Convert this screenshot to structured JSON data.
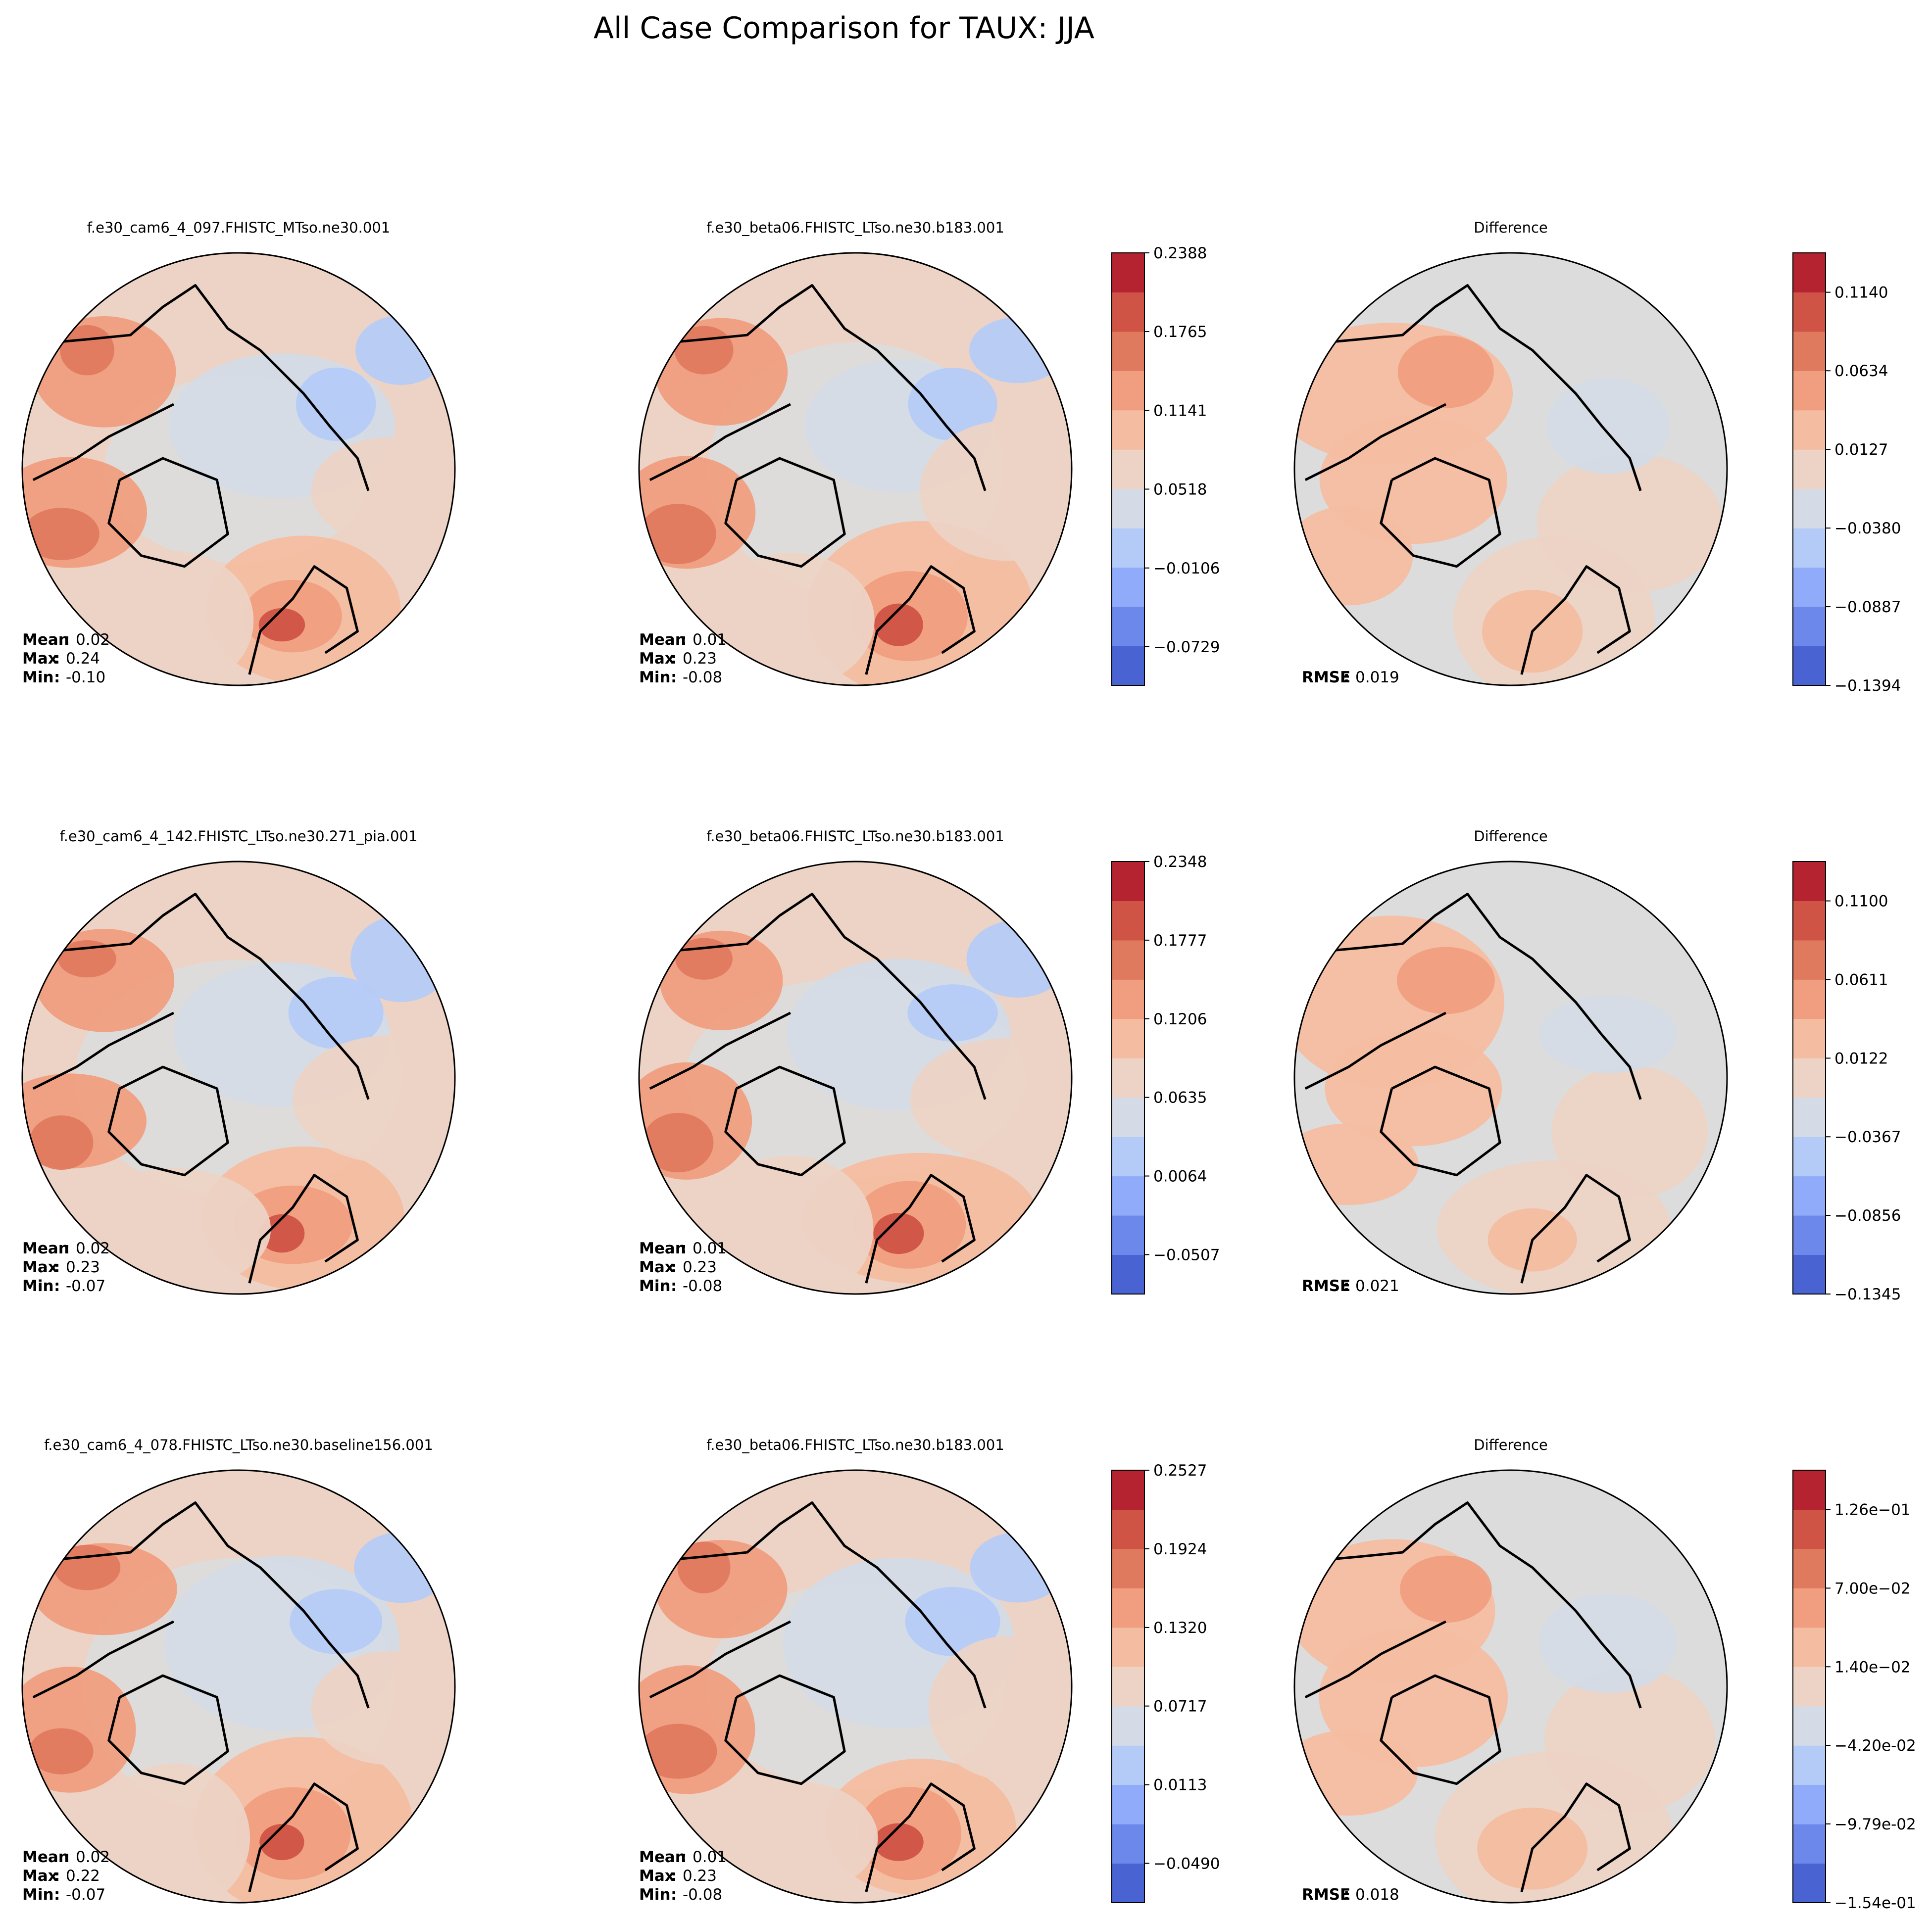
{
  "title": "All Case Comparison for TAUX: JJA",
  "colors": {
    "scale": [
      "#4a63d2",
      "#6b88ea",
      "#8fabf9",
      "#b5cbf7",
      "#d4dbe6",
      "#dcdcdc",
      "#ecd3c5",
      "#f4bda1",
      "#f09e7f",
      "#e07a5f",
      "#cf5446",
      "#b4232f"
    ],
    "land": "#000000"
  },
  "chart_data": [
    {
      "type": "polar-contour-map",
      "row": 0,
      "col": 0,
      "kind": "case",
      "title": "f.e30_cam6_4_097.FHISTC_MTso.ne30.001",
      "stats": [
        {
          "label": "Mean",
          "value": "0.02"
        },
        {
          "label": "Max",
          "value": "0.24"
        },
        {
          "label": "Min",
          "value": "-0.10"
        }
      ]
    },
    {
      "type": "polar-contour-map",
      "row": 0,
      "col": 1,
      "kind": "baseline",
      "title": "f.e30_beta06.FHISTC_LTso.ne30.b183.001",
      "stats": [
        {
          "label": "Mean",
          "value": "0.01"
        },
        {
          "label": "Max",
          "value": "0.23"
        },
        {
          "label": "Min",
          "value": "-0.08"
        }
      ],
      "colorbar": {
        "range": [
          -0.1035,
          0.2388
        ],
        "ticks": [
          "0.2388",
          "0.1765",
          "0.1141",
          "0.0518",
          "-0.0106",
          "-0.0729"
        ],
        "tick_values": [
          0.2388,
          0.1765,
          0.1141,
          0.0518,
          -0.0106,
          -0.0729
        ],
        "n_levels": 11
      }
    },
    {
      "type": "polar-contour-map",
      "row": 0,
      "col": 2,
      "kind": "difference",
      "title": "Difference",
      "stats": [
        {
          "label": "RMSE",
          "value": "0.019"
        }
      ],
      "colorbar": {
        "range": [
          -0.1394,
          0.1394
        ],
        "ticks": [
          "0.1140",
          "0.0634",
          "0.0127",
          "-0.0380",
          "-0.0887",
          "-0.1394"
        ],
        "tick_values": [
          0.114,
          0.0634,
          0.0127,
          -0.038,
          -0.0887,
          -0.1394
        ],
        "n_levels": 11
      }
    },
    {
      "type": "polar-contour-map",
      "row": 1,
      "col": 0,
      "kind": "case",
      "title": "f.e30_cam6_4_142.FHISTC_LTso.ne30.271_pia.001",
      "stats": [
        {
          "label": "Mean",
          "value": "0.02"
        },
        {
          "label": "Max",
          "value": "0.23"
        },
        {
          "label": "Min",
          "value": "-0.07"
        }
      ]
    },
    {
      "type": "polar-contour-map",
      "row": 1,
      "col": 1,
      "kind": "baseline",
      "title": "f.e30_beta06.FHISTC_LTso.ne30.b183.001",
      "stats": [
        {
          "label": "Mean",
          "value": "0.01"
        },
        {
          "label": "Max",
          "value": "0.23"
        },
        {
          "label": "Min",
          "value": "-0.08"
        }
      ],
      "colorbar": {
        "range": [
          -0.0793,
          0.2348
        ],
        "ticks": [
          "0.2348",
          "0.1777",
          "0.1206",
          "0.0635",
          "0.0064",
          "-0.0507"
        ],
        "tick_values": [
          0.2348,
          0.1777,
          0.1206,
          0.0635,
          0.0064,
          -0.0507
        ],
        "n_levels": 11
      }
    },
    {
      "type": "polar-contour-map",
      "row": 1,
      "col": 2,
      "kind": "difference",
      "title": "Difference",
      "stats": [
        {
          "label": "RMSE",
          "value": "0.021"
        }
      ],
      "colorbar": {
        "range": [
          -0.1345,
          0.1345
        ],
        "ticks": [
          "0.1100",
          "0.0611",
          "0.0122",
          "-0.0367",
          "-0.0856",
          "-0.1345"
        ],
        "tick_values": [
          0.11,
          0.0611,
          0.0122,
          -0.0367,
          -0.0856,
          -0.1345
        ],
        "n_levels": 11
      }
    },
    {
      "type": "polar-contour-map",
      "row": 2,
      "col": 0,
      "kind": "case",
      "title": "f.e30_cam6_4_078.FHISTC_LTso.ne30.baseline156.001",
      "stats": [
        {
          "label": "Mean",
          "value": "0.02"
        },
        {
          "label": "Max",
          "value": "0.22"
        },
        {
          "label": "Min",
          "value": "-0.07"
        }
      ]
    },
    {
      "type": "polar-contour-map",
      "row": 2,
      "col": 1,
      "kind": "baseline",
      "title": "f.e30_beta06.FHISTC_LTso.ne30.b183.001",
      "stats": [
        {
          "label": "Mean",
          "value": "0.01"
        },
        {
          "label": "Max",
          "value": "0.23"
        },
        {
          "label": "Min",
          "value": "-0.08"
        }
      ],
      "colorbar": {
        "range": [
          -0.0792,
          0.2527
        ],
        "ticks": [
          "0.2527",
          "0.1924",
          "0.1320",
          "0.0717",
          "0.0113",
          "-0.0490"
        ],
        "tick_values": [
          0.2527,
          0.1924,
          0.132,
          0.0717,
          0.0113,
          -0.049
        ],
        "n_levels": 11
      }
    },
    {
      "type": "polar-contour-map",
      "row": 2,
      "col": 2,
      "kind": "difference",
      "title": "Difference",
      "stats": [
        {
          "label": "RMSE",
          "value": "0.018"
        }
      ],
      "colorbar": {
        "range": [
          -0.154,
          0.154
        ],
        "ticks": [
          "1.26e-01",
          "7.00e-02",
          "1.40e-02",
          "-4.20e-02",
          "-9.79e-02",
          "-1.54e-01"
        ],
        "tick_values": [
          0.126,
          0.07,
          0.014,
          -0.042,
          -0.0979,
          -0.154
        ],
        "n_levels": 11
      }
    }
  ]
}
